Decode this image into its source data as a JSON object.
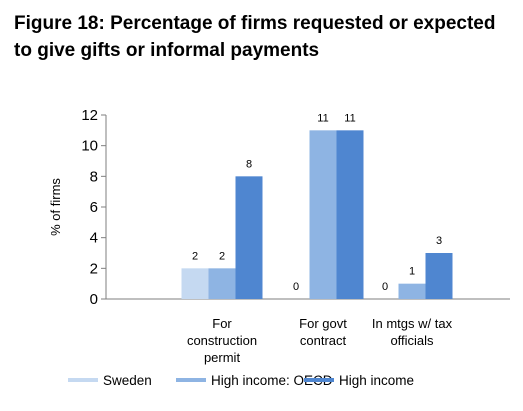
{
  "title_line1": "Figure 18: Percentage of firms requested or expected",
  "title_line2": "to give gifts or informal payments",
  "chart_data": {
    "type": "bar",
    "title": "Figure 18: Percentage of firms requested or expected to give gifts or informal payments",
    "xlabel": "",
    "ylabel": "% of firms",
    "ylim": [
      0,
      12
    ],
    "yticks": [
      "0",
      "2",
      "4",
      "6",
      "8",
      "10",
      "12"
    ],
    "categories": [
      [
        "For",
        "construction",
        "permit"
      ],
      [
        "For govt",
        "contract"
      ],
      [
        "In mtgs w/ tax",
        "officials"
      ]
    ],
    "series": [
      {
        "name": "Sweden",
        "color": "#c5d9f1",
        "values": [
          2,
          0,
          0
        ],
        "labels": [
          "2",
          "0",
          "0"
        ]
      },
      {
        "name": "High income: OECD",
        "color": "#8eb4e3",
        "values": [
          2,
          11,
          1
        ],
        "labels": [
          "2",
          "11",
          "1"
        ]
      },
      {
        "name": "High income",
        "color": "#4f86d0",
        "values": [
          8,
          11,
          3
        ],
        "labels": [
          "8",
          "11",
          "3"
        ]
      }
    ],
    "grid": false,
    "legend": "bottom"
  }
}
